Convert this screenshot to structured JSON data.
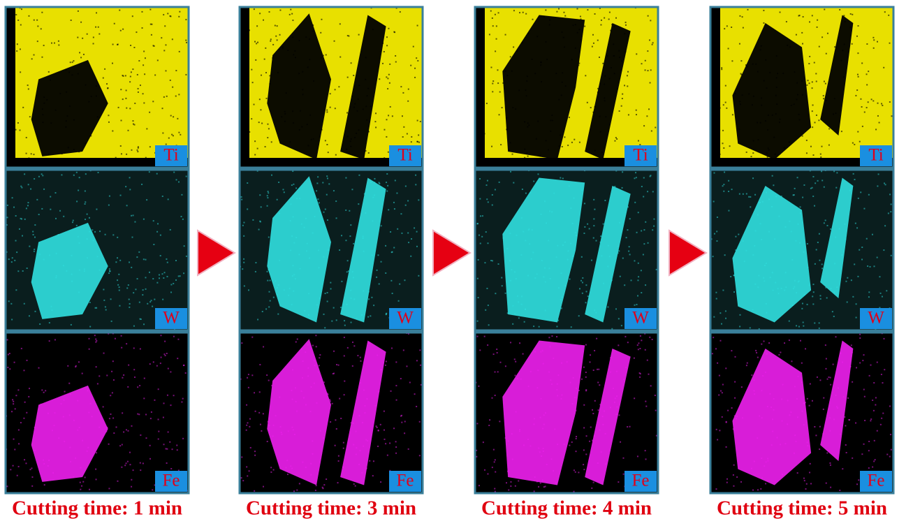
{
  "columns": [
    {
      "caption": "Cutting time: 1 min",
      "panels": [
        {
          "label": "Ti"
        },
        {
          "label": "W"
        },
        {
          "label": "Fe"
        }
      ]
    },
    {
      "caption": "Cutting time: 3 min",
      "panels": [
        {
          "label": "Ti"
        },
        {
          "label": "W"
        },
        {
          "label": "Fe"
        }
      ]
    },
    {
      "caption": "Cutting time: 4 min",
      "panels": [
        {
          "label": "Ti"
        },
        {
          "label": "W"
        },
        {
          "label": "Fe"
        }
      ]
    },
    {
      "caption": "Cutting time: 5 min",
      "panels": [
        {
          "label": "Ti"
        },
        {
          "label": "W"
        },
        {
          "label": "Fe"
        }
      ]
    }
  ]
}
